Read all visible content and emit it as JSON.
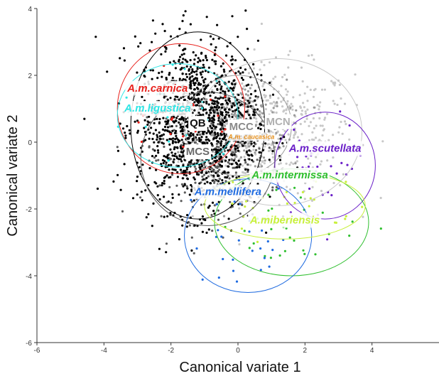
{
  "chart_data": {
    "type": "scatter",
    "xlabel": "Canonical variate 1",
    "ylabel": "Canonical variate 2",
    "xlim": [
      -6,
      6
    ],
    "ylim": [
      -6,
      4
    ],
    "xticks": [
      -6,
      -4,
      -2,
      0,
      2,
      4
    ],
    "yticks": [
      -6,
      -4,
      -2,
      0,
      2,
      4
    ],
    "grid": false,
    "legend": "none",
    "series": [
      {
        "name": "A.m.carnica",
        "color": "#e8211c",
        "center": [
          -1.7,
          1.0
        ],
        "ellipse_rx": 1.9,
        "ellipse_ry": 1.95,
        "points": 25
      },
      {
        "name": "A.m.ligustica",
        "color": "#2ee6e6",
        "center": [
          -1.8,
          0.8
        ],
        "ellipse_rx": 1.8,
        "ellipse_ry": 1.55,
        "points": 25
      },
      {
        "name": "QB",
        "color": "#000000",
        "center": [
          -1.2,
          0.5
        ],
        "ellipse_rx": 2.0,
        "ellipse_ry": 2.8,
        "points": 1300
      },
      {
        "name": "MCC",
        "color": "#9a9a9a",
        "center": [
          0.0,
          0.5
        ],
        "ellipse_rx": 1.6,
        "ellipse_ry": 1.5,
        "points": 300
      },
      {
        "name": "A.m. caucasica",
        "color": "#e8911c",
        "center": [
          0.2,
          0.2
        ],
        "ellipse_rx": 0,
        "ellipse_ry": 0,
        "points": 0
      },
      {
        "name": "MCN",
        "color": "#c8c8c8",
        "center": [
          1.2,
          0.3
        ],
        "ellipse_rx": 2.5,
        "ellipse_ry": 2.2,
        "points": 450
      },
      {
        "name": "MCS",
        "color": "#5c5c5c",
        "center": [
          -0.9,
          -0.5
        ],
        "ellipse_rx": 2.0,
        "ellipse_ry": 2.0,
        "points": 320
      },
      {
        "name": "A.m.scutellata",
        "color": "#6a1fc8",
        "center": [
          2.6,
          -0.7
        ],
        "ellipse_rx": 1.5,
        "ellipse_ry": 1.6,
        "points": 30
      },
      {
        "name": "A.m.intermissa",
        "color": "#2fbf2f",
        "center": [
          1.6,
          -2.4
        ],
        "ellipse_rx": 2.3,
        "ellipse_ry": 1.6,
        "points": 35
      },
      {
        "name": "A.m.mellifera",
        "color": "#1f6be0",
        "center": [
          0.3,
          -2.8
        ],
        "ellipse_rx": 1.9,
        "ellipse_ry": 1.7,
        "points": 30
      },
      {
        "name": "A.miberiensis",
        "color": "#c8f03c",
        "center": [
          1.4,
          -1.9
        ],
        "ellipse_rx": 2.4,
        "ellipse_ry": 1.0,
        "points": 30
      }
    ],
    "labels": [
      {
        "text": "A.m.carnica",
        "x": -2.4,
        "y": 1.6,
        "color": "#e8211c",
        "style": "italic"
      },
      {
        "text": "A.m.ligustica",
        "x": -2.4,
        "y": 1.0,
        "color": "#2ee6e6",
        "style": "italic"
      },
      {
        "text": "QB",
        "x": -1.2,
        "y": 0.55,
        "color": "#111111",
        "style": "box"
      },
      {
        "text": "MCC",
        "x": 0.1,
        "y": 0.45,
        "color": "#8a8a8a",
        "style": "box"
      },
      {
        "text": "MCN",
        "x": 1.2,
        "y": 0.6,
        "color": "#b0b0b0",
        "style": "box"
      },
      {
        "text": "A.m. caucasica",
        "x": 0.4,
        "y": 0.15,
        "color": "#e8911c",
        "style": "small"
      },
      {
        "text": "A.m.scutellata",
        "x": 2.6,
        "y": -0.2,
        "color": "#6a1fc8",
        "style": "italic"
      },
      {
        "text": "MCS",
        "x": -1.2,
        "y": -0.3,
        "color": "#6a6a6a",
        "style": "box"
      },
      {
        "text": "A.m.intermissa",
        "x": 1.55,
        "y": -1.0,
        "color": "#2fbf2f",
        "style": "italic"
      },
      {
        "text": "A.m.mellifera",
        "x": -0.3,
        "y": -1.5,
        "color": "#1f6be0",
        "style": "italic"
      },
      {
        "text": "A.miberiensis",
        "x": 1.4,
        "y": -2.35,
        "color": "#c8f03c",
        "style": "italic"
      }
    ]
  }
}
